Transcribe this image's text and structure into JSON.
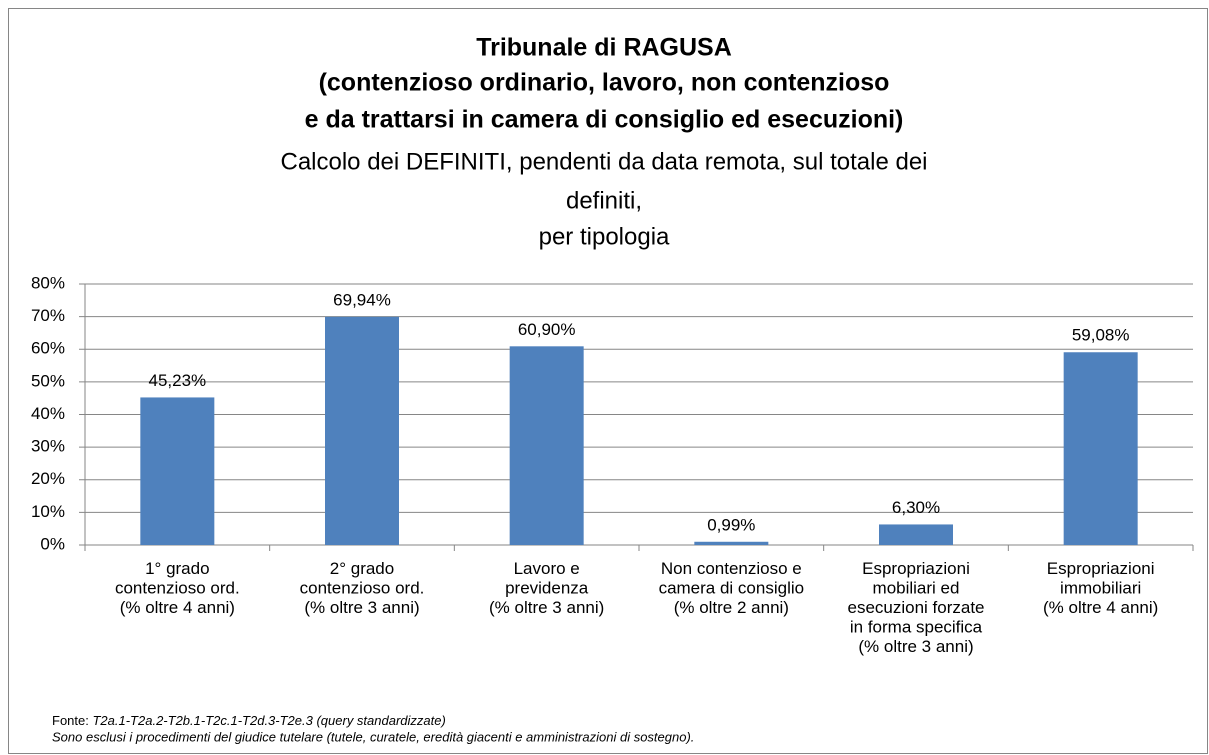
{
  "chart_data": {
    "type": "bar",
    "title": [
      "Tribunale di RAGUSA",
      "(contenzioso ordinario, lavoro, non contenzioso",
      "e da trattarsi in camera di consiglio ed esecuzioni)"
    ],
    "subtitle": [
      "Calcolo dei DEFINITI, pendenti da data remota, sul totale dei",
      "definiti,",
      "per tipologia"
    ],
    "categories": [
      "1° grado\ncontenzioso ord.\n(% oltre 4 anni)",
      "2° grado\ncontenzioso ord.\n(% oltre 3 anni)",
      "Lavoro e\nprevidenza\n(% oltre 3 anni)",
      "Non contenzioso e\ncamera di consiglio\n(% oltre 2 anni)",
      "Espropriazioni\nmobiliari ed\nesecuzioni forzate\nin forma specifica\n(% oltre 3 anni)",
      "Espropriazioni\nimmobiliari\n(% oltre 4 anni)"
    ],
    "values": [
      45.23,
      69.94,
      60.9,
      0.99,
      6.3,
      59.08
    ],
    "value_labels": [
      "45,23%",
      "69,94%",
      "60,90%",
      "0,99%",
      "6,30%",
      "59,08%"
    ],
    "color": "#4f81bd",
    "ylim": [
      0,
      80
    ],
    "yticks": [
      {
        "value": 0,
        "label": "0%"
      },
      {
        "value": 10,
        "label": "10%"
      },
      {
        "value": 20,
        "label": "20%"
      },
      {
        "value": 30,
        "label": "30%"
      },
      {
        "value": 40,
        "label": "40%"
      },
      {
        "value": 50,
        "label": "50%"
      },
      {
        "value": 60,
        "label": "60%"
      },
      {
        "value": 70,
        "label": "70%"
      },
      {
        "value": 80,
        "label": "80%"
      }
    ],
    "grid": true,
    "footer": {
      "source_label": "Fonte:",
      "source": "T2a.1-T2a.2-T2b.1-T2c.1-T2d.3-T2e.3 (query standardizzate)",
      "note": "Sono esclusi i procedimenti del giudice tutelare (tutele, curatele, eredità giacenti e amministrazioni di sostegno)."
    }
  }
}
